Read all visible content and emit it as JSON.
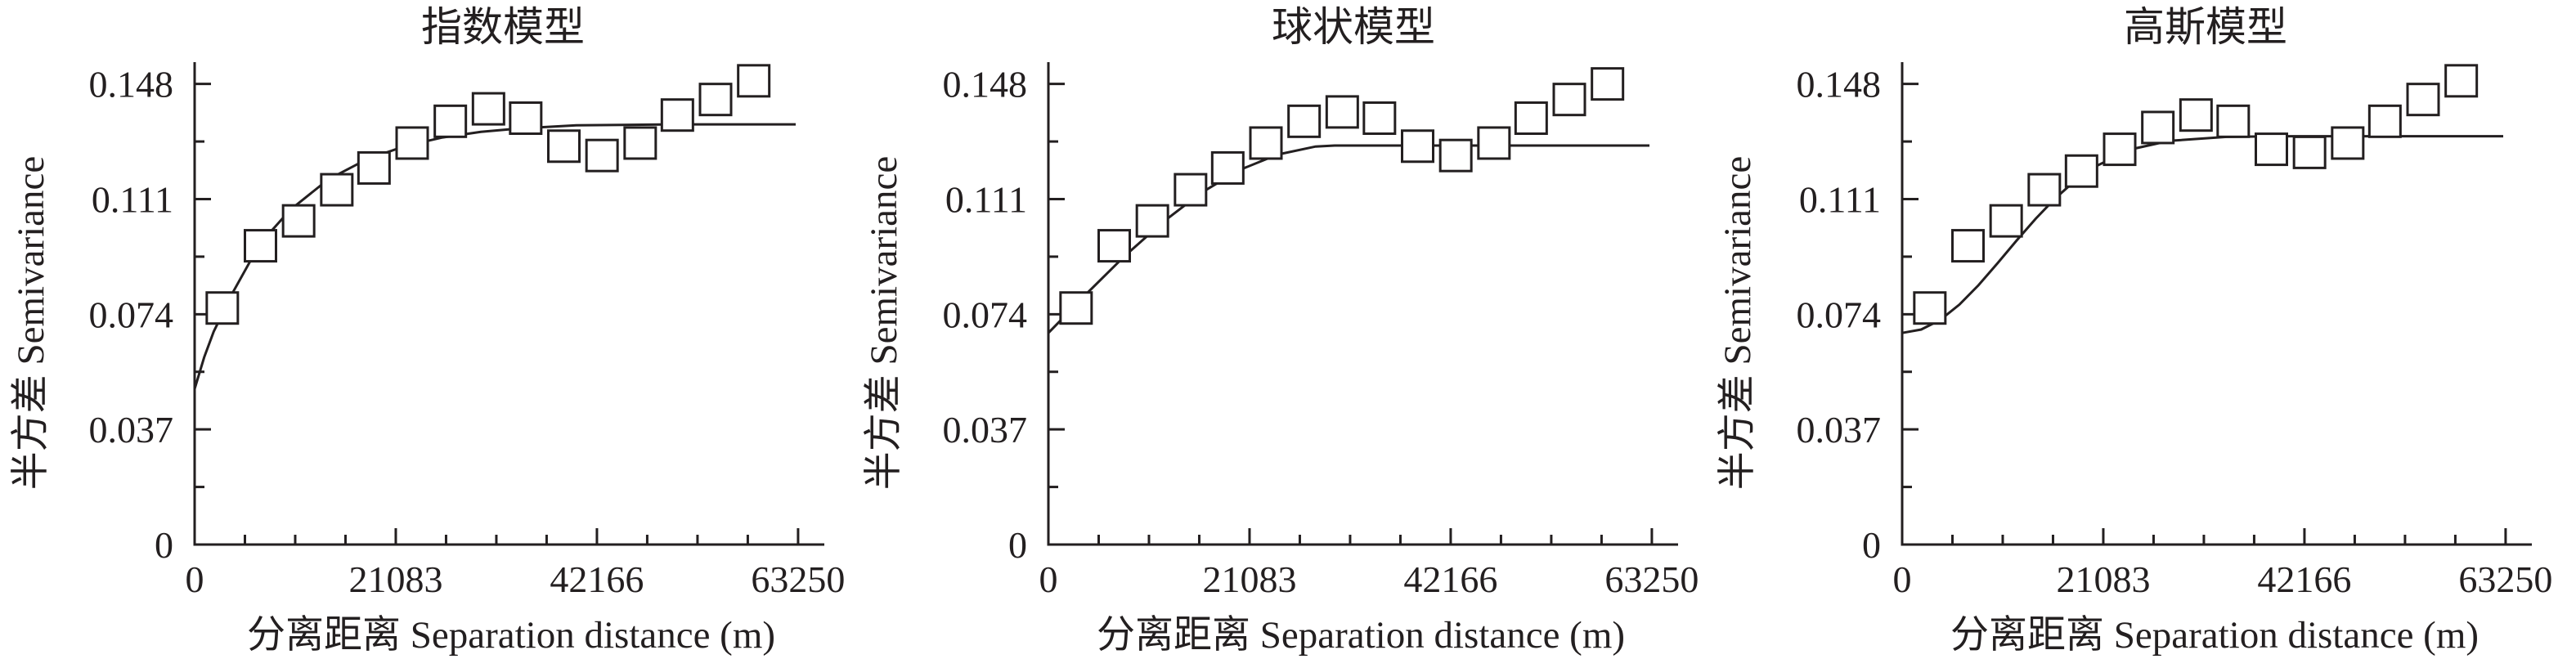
{
  "chart_data": [
    {
      "type": "scatter",
      "title": "指数模型",
      "xlabel": "分离距离 Separation distance (m)",
      "ylabel": "半方差 Semivariance",
      "xlim": [
        0,
        66000
      ],
      "ylim": [
        0,
        0.155
      ],
      "xticks": [
        "0",
        "21083",
        "42166",
        "63250"
      ],
      "yticks": [
        "0",
        "0.037",
        "0.074",
        "0.111",
        "0.148"
      ],
      "series": [
        {
          "marker": "square",
          "x": [
            2900,
            6900,
            10900,
            14900,
            18800,
            22800,
            26800,
            30800,
            34700,
            38700,
            42700,
            46700,
            50600,
            54600,
            58600
          ],
          "y": [
            0.076,
            0.096,
            0.104,
            0.114,
            0.121,
            0.129,
            0.136,
            0.14,
            0.137,
            0.128,
            0.125,
            0.129,
            0.138,
            0.143,
            0.149
          ]
        },
        {
          "marker": "line",
          "x": [
            0,
            1000,
            2000,
            4000,
            6000,
            8000,
            10000,
            14000,
            18000,
            22000,
            26000,
            30000,
            34000,
            40000,
            50000,
            63000
          ],
          "y": [
            0.05,
            0.0602,
            0.0684,
            0.081,
            0.092,
            0.1006,
            0.1075,
            0.1173,
            0.1237,
            0.128,
            0.1308,
            0.1326,
            0.1337,
            0.1347,
            0.135,
            0.135
          ]
        }
      ]
    },
    {
      "type": "scatter",
      "title": "球状模型",
      "xlabel": "分离距离 Separation distance (m)",
      "ylabel": "半方差 Semivariance",
      "xlim": [
        0,
        66000
      ],
      "ylim": [
        0,
        0.155
      ],
      "xticks": [
        "0",
        "21083",
        "42166",
        "63250"
      ],
      "yticks": [
        "0",
        "0.037",
        "0.074",
        "0.111",
        "0.148"
      ],
      "series": [
        {
          "marker": "square",
          "x": [
            2900,
            6900,
            10900,
            14900,
            18800,
            22800,
            26800,
            30800,
            34700,
            38700,
            42700,
            46700,
            50600,
            54600,
            58600
          ],
          "y": [
            0.076,
            0.096,
            0.104,
            0.114,
            0.121,
            0.129,
            0.136,
            0.139,
            0.137,
            0.128,
            0.125,
            0.129,
            0.137,
            0.143,
            0.148
          ]
        },
        {
          "marker": "line",
          "x": [
            0,
            4000,
            8000,
            12000,
            16000,
            20000,
            24000,
            28000,
            30000,
            32000,
            40000,
            50000,
            63000
          ],
          "y": [
            0.068,
            0.0806,
            0.0927,
            0.1036,
            0.113,
            0.1203,
            0.1253,
            0.1279,
            0.1282,
            0.1282,
            0.1282,
            0.1282,
            0.1282
          ]
        }
      ]
    },
    {
      "type": "scatter",
      "title": "高斯模型",
      "xlabel": "分离距离 Separation distance (m)",
      "ylabel": "半方差 Semivariance",
      "xlim": [
        0,
        66000
      ],
      "ylim": [
        0,
        0.155
      ],
      "xticks": [
        "0",
        "21083",
        "42166",
        "63250"
      ],
      "yticks": [
        "0",
        "0.037",
        "0.074",
        "0.111",
        "0.148"
      ],
      "series": [
        {
          "marker": "square",
          "x": [
            2900,
            6900,
            10900,
            14900,
            18800,
            22800,
            26800,
            30800,
            34700,
            38700,
            42700,
            46700,
            50600,
            54600,
            58600
          ],
          "y": [
            0.076,
            0.096,
            0.104,
            0.114,
            0.12,
            0.127,
            0.134,
            0.138,
            0.136,
            0.127,
            0.126,
            0.129,
            0.136,
            0.143,
            0.149
          ]
        },
        {
          "marker": "line",
          "x": [
            0,
            2000,
            4000,
            6000,
            8000,
            10000,
            12000,
            14000,
            16000,
            18000,
            20000,
            24000,
            28000,
            34000,
            40000,
            50000,
            63000
          ],
          "y": [
            0.068,
            0.0691,
            0.0722,
            0.0771,
            0.0833,
            0.0904,
            0.0977,
            0.1047,
            0.1111,
            0.1166,
            0.1211,
            0.127,
            0.1297,
            0.131,
            0.1312,
            0.1312,
            0.1312
          ]
        }
      ]
    }
  ]
}
